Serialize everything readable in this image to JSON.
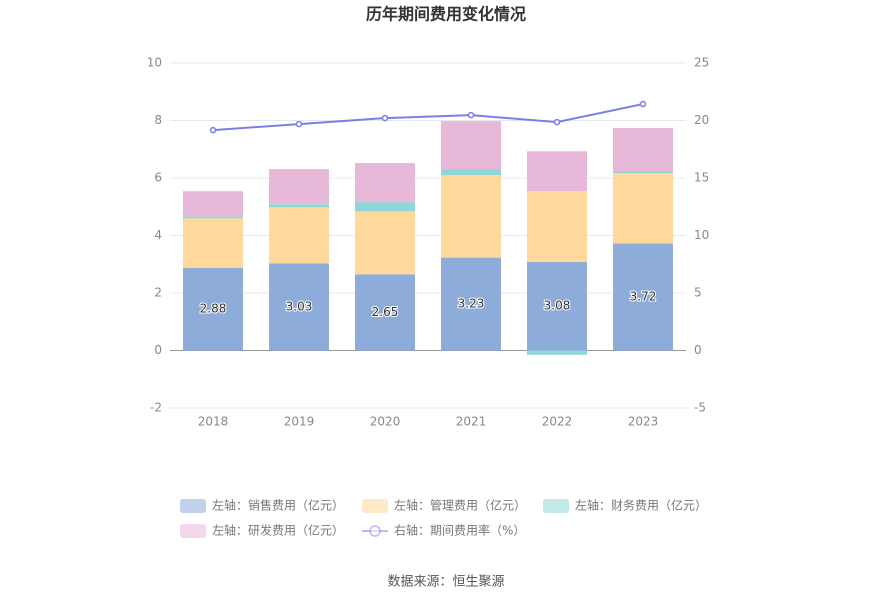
{
  "chart_data": {
    "type": "bar",
    "title": "历年期间费用变化情况",
    "categories": [
      "2018",
      "2019",
      "2020",
      "2021",
      "2022",
      "2023"
    ],
    "series": [
      {
        "name": "左轴：销售费用（亿元）",
        "color": "#8eacd9",
        "values": [
          2.88,
          3.03,
          2.65,
          3.23,
          3.08,
          3.72
        ],
        "value_labels": [
          "2.88",
          "3.03",
          "2.65",
          "3.23",
          "3.08",
          "3.72"
        ]
      },
      {
        "name": "左轴：管理费用（亿元）",
        "color": "#fed99b",
        "values": [
          1.72,
          1.95,
          2.19,
          2.87,
          2.46,
          2.45
        ]
      },
      {
        "name": "左轴：财务费用（亿元）",
        "color": "#8fd6d8",
        "values": [
          0.07,
          0.11,
          0.32,
          0.21,
          -0.15,
          0.07
        ]
      },
      {
        "name": "左轴：研发费用（亿元）",
        "color": "#e8b8d9",
        "values": [
          0.87,
          1.22,
          1.36,
          1.67,
          1.39,
          1.5
        ]
      },
      {
        "name": "右轴：期间费用率（%）",
        "color": "#7b7fe5",
        "type": "line",
        "axis": "y2",
        "values": [
          19.16,
          19.69,
          20.21,
          20.47,
          19.86,
          21.43
        ]
      }
    ],
    "ylim": [
      -2,
      10
    ],
    "yticks": [
      -2,
      0,
      2,
      4,
      6,
      8,
      10
    ],
    "y2lim": [
      -5,
      25
    ],
    "y2ticks": [
      -5,
      0,
      5,
      10,
      15,
      20,
      25
    ],
    "grid": true,
    "source": "数据来源：恒生聚源"
  }
}
